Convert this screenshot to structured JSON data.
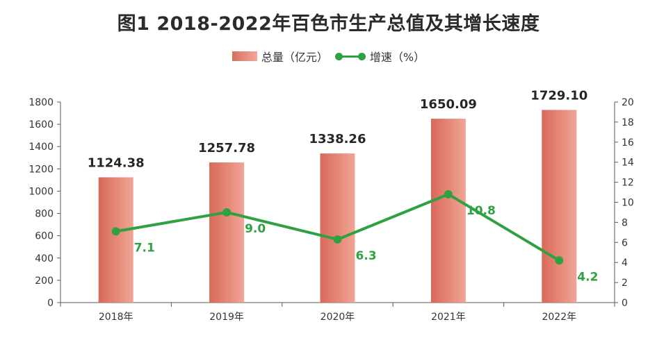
{
  "chart_data": {
    "type": "bar+line",
    "title": "图1  2018-2022年百色市生产总值及其增长速度",
    "categories": [
      "2018年",
      "2019年",
      "2020年",
      "2021年",
      "2022年"
    ],
    "series": [
      {
        "name": "总量（亿元）",
        "type": "bar",
        "axis": "left",
        "values": [
          1124.38,
          1257.78,
          1338.26,
          1650.09,
          1729.1
        ],
        "labels": [
          "1124.38",
          "1257.78",
          "1338.26",
          "1650.09",
          "1729.10"
        ],
        "color": "#e07a69"
      },
      {
        "name": "增速（%）",
        "type": "line",
        "axis": "right",
        "values": [
          7.1,
          9.0,
          6.3,
          10.8,
          4.2
        ],
        "labels": [
          "7.1",
          "9.0",
          "6.3",
          "10.8",
          "4.2"
        ],
        "color": "#2fa141"
      }
    ],
    "y_left": {
      "min": 0,
      "max": 1800,
      "ticks": [
        0,
        200,
        400,
        600,
        800,
        1000,
        1200,
        1400,
        1600,
        1800
      ]
    },
    "y_right": {
      "min": 0,
      "max": 20,
      "ticks": [
        0,
        2,
        4,
        6,
        8,
        10,
        12,
        14,
        16,
        18,
        20
      ]
    },
    "legend_position": "top",
    "grid": false
  }
}
